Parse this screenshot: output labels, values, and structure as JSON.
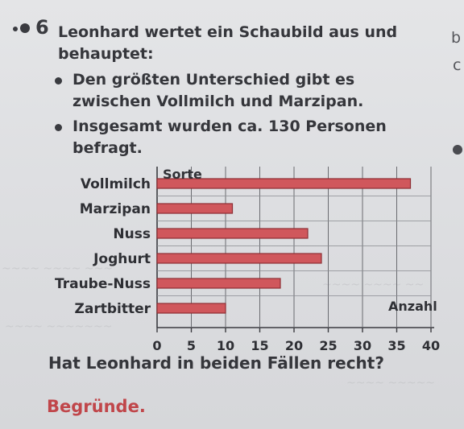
{
  "task": {
    "number": "6",
    "intro": "Leonhard wertet ein Schaubild aus und behauptet:",
    "claims": [
      "Den größten Unterschied gibt es zwischen Vollmilch und Marzipan.",
      "Insgesamt wurden ca. 130 Personen befragt."
    ],
    "question": "Hat Leonhard in beiden Fällen recht?",
    "instruction": "Begründe.",
    "edge_letters": [
      "b",
      "c"
    ]
  },
  "chart_data": {
    "type": "bar",
    "orientation": "horizontal",
    "category_axis_label": "Sorte",
    "value_axis_label": "Anzahl",
    "categories": [
      "Vollmilch",
      "Marzipan",
      "Nuss",
      "Joghurt",
      "Traube-Nuss",
      "Zartbitter"
    ],
    "values": [
      37,
      11,
      22,
      24,
      18,
      10
    ],
    "xlim": [
      0,
      40
    ],
    "ticks": [
      "0",
      "5",
      "10",
      "15",
      "20",
      "25",
      "30",
      "35",
      "40"
    ],
    "grid": true,
    "bar_color": "#d0575c"
  }
}
